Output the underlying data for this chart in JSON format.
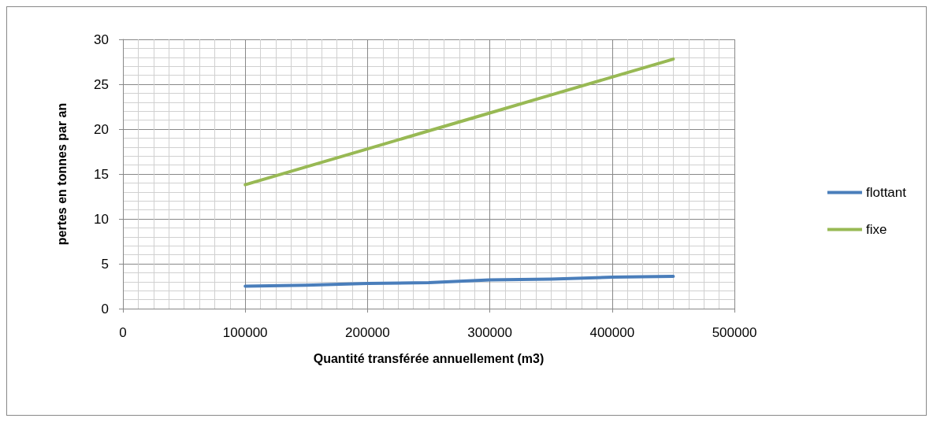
{
  "chart_data": {
    "type": "line",
    "xlabel": "Quantité transférée annuellement (m3)",
    "ylabel": "pertes en tonnes par an",
    "x": [
      100000,
      150000,
      200000,
      250000,
      300000,
      350000,
      400000,
      450000
    ],
    "series": [
      {
        "name": "flottant",
        "color": "#4a7ebb",
        "values": [
          2.5,
          2.6,
          2.8,
          2.9,
          3.2,
          3.3,
          3.5,
          3.6
        ]
      },
      {
        "name": "fixe",
        "color": "#98b954",
        "values": [
          13.8,
          15.8,
          17.8,
          19.8,
          21.8,
          23.8,
          25.8,
          27.8
        ]
      }
    ],
    "xlim": [
      0,
      500000
    ],
    "xticks": [
      0,
      100000,
      200000,
      300000,
      400000,
      500000
    ],
    "ylim": [
      0,
      30
    ],
    "yticks": [
      0,
      5,
      10,
      15,
      20,
      25,
      30
    ],
    "grid": true,
    "legend": "right",
    "marker": "none",
    "line_style": "solid"
  }
}
